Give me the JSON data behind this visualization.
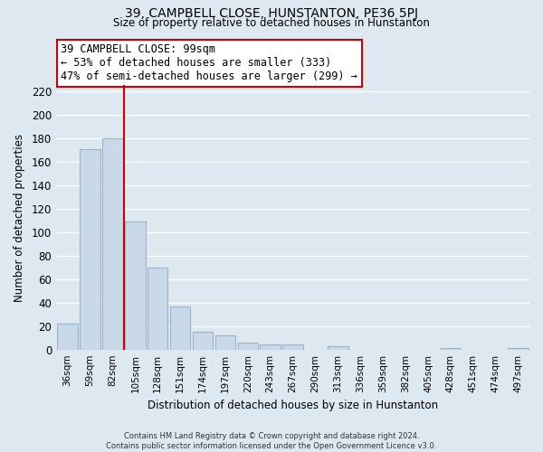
{
  "title": "39, CAMPBELL CLOSE, HUNSTANTON, PE36 5PJ",
  "subtitle": "Size of property relative to detached houses in Hunstanton",
  "xlabel": "Distribution of detached houses by size in Hunstanton",
  "ylabel": "Number of detached properties",
  "bar_labels": [
    "36sqm",
    "59sqm",
    "82sqm",
    "105sqm",
    "128sqm",
    "151sqm",
    "174sqm",
    "197sqm",
    "220sqm",
    "243sqm",
    "267sqm",
    "290sqm",
    "313sqm",
    "336sqm",
    "359sqm",
    "382sqm",
    "405sqm",
    "428sqm",
    "451sqm",
    "474sqm",
    "497sqm"
  ],
  "bar_values": [
    22,
    171,
    180,
    109,
    70,
    37,
    15,
    12,
    6,
    4,
    4,
    0,
    3,
    0,
    0,
    0,
    0,
    1,
    0,
    0,
    1
  ],
  "bar_color": "#c9d9e8",
  "bar_edge_color": "#9ab4cc",
  "vline_color": "#cc0000",
  "ylim": [
    0,
    225
  ],
  "yticks": [
    0,
    20,
    40,
    60,
    80,
    100,
    120,
    140,
    160,
    180,
    200,
    220
  ],
  "annotation_title": "39 CAMPBELL CLOSE: 99sqm",
  "annotation_line1": "← 53% of detached houses are smaller (333)",
  "annotation_line2": "47% of semi-detached houses are larger (299) →",
  "annotation_box_color": "#ffffff",
  "annotation_box_edgecolor": "#cc0000",
  "footer1": "Contains HM Land Registry data © Crown copyright and database right 2024.",
  "footer2": "Contains public sector information licensed under the Open Government Licence v3.0.",
  "background_color": "#dde8f0",
  "grid_color": "#ffffff"
}
